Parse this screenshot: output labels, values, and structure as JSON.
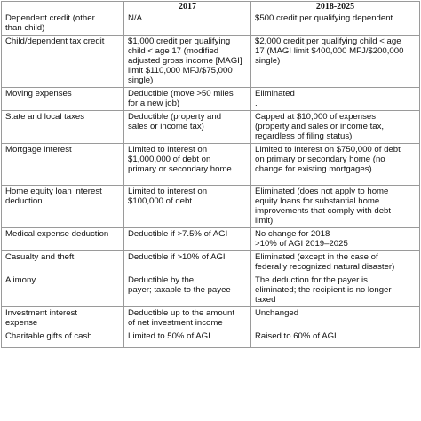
{
  "table": {
    "headers": [
      "",
      "2017",
      "2018-2025"
    ],
    "rows": [
      {
        "label": "Dependent credit (other\nthan child)",
        "y2017": "N/A",
        "y2018": "$500 credit per qualifying dependent"
      },
      {
        "label": "Child/dependent tax credit",
        "y2017": "$1,000 credit per qualifying\nchild < age 17 (modified\nadjusted gross income [MAGI]\nlimit $110,000 MFJ/$75,000\nsingle)",
        "y2018": "$2,000 credit per qualifying child < age\n17 (MAGI limit $400,000 MFJ/$200,000\nsingle)"
      },
      {
        "label": "Moving expenses",
        "y2017": "Deductible (move >50 miles\nfor a new job)",
        "y2018": "Eliminated\n."
      },
      {
        "label": "State and local taxes",
        "y2017": "Deductible (property and\nsales or income tax)",
        "y2018": "Capped at $10,000 of expenses\n(property and sales or income tax,\nregardless of filing status)"
      },
      {
        "label": "Mortgage interest",
        "y2017": "Limited to interest on\n$1,000,000 of debt on\nprimary or secondary home",
        "y2018": "Limited to interest on $750,000 of debt\non primary or secondary home (no\nchange for existing mortgages)"
      },
      {
        "label": "Home equity loan interest\ndeduction",
        "y2017": "Limited to interest on\n$100,000 of debt",
        "y2018": "Eliminated (does not apply to home\nequity loans for substantial home\nimprovements that comply with debt\nlimit)"
      },
      {
        "label": "Medical expense deduction",
        "y2017": "Deductible if >7.5% of AGI",
        "y2018": "No change for 2018\n>10% of AGI 2019–2025"
      },
      {
        "label": "Casualty and theft",
        "y2017": "Deductible if >10% of AGI",
        "y2018": "Eliminated (except in the case of\nfederally recognized natural disaster)"
      },
      {
        "label": "Alimony",
        "y2017": "Deductible by the\npayer; taxable to the payee",
        "y2018": "The deduction for the payer is\neliminated; the recipient is no longer\ntaxed"
      },
      {
        "label": "Investment interest\nexpense",
        "y2017": "Deductible up to the amount\nof net investment income",
        "y2018": "Unchanged"
      },
      {
        "label": "Charitable gifts of cash",
        "y2017": "Limited to 50% of AGI",
        "y2018": "Raised to 60% of AGI"
      }
    ]
  }
}
